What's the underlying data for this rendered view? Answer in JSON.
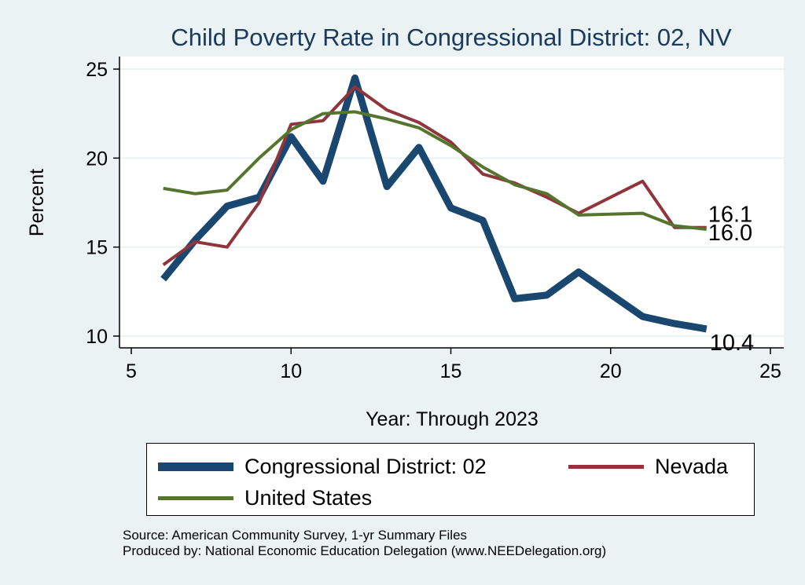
{
  "chart_data": {
    "type": "line",
    "title": "Child Poverty Rate in Congressional District:  02, NV",
    "xlabel": "Year: Through 2023",
    "ylabel": "Percent",
    "xlim": [
      5,
      25
    ],
    "ylim": [
      10,
      25
    ],
    "xticks": [
      5,
      10,
      15,
      20,
      25
    ],
    "yticks": [
      10,
      15,
      20,
      25
    ],
    "grid": true,
    "legend_position": "bottom",
    "series": [
      {
        "name": "Congressional District:  02",
        "color": "#1a476f",
        "x": [
          6,
          7,
          8,
          9,
          10,
          11,
          12,
          13,
          14,
          15,
          16,
          17,
          18,
          19,
          21,
          22,
          23
        ],
        "y": [
          13.2,
          15.4,
          17.3,
          17.8,
          21.2,
          18.7,
          24.5,
          18.4,
          20.6,
          17.2,
          16.5,
          12.1,
          12.3,
          13.6,
          11.1,
          10.7,
          10.4
        ],
        "end_label": "10.4"
      },
      {
        "name": "Nevada",
        "color": "#90353b",
        "x": [
          6,
          7,
          8,
          9,
          10,
          11,
          12,
          13,
          14,
          15,
          16,
          17,
          18,
          19,
          21,
          22,
          23
        ],
        "y": [
          14.0,
          15.3,
          15.0,
          17.5,
          21.9,
          22.1,
          24.0,
          22.7,
          22.0,
          20.9,
          19.1,
          18.6,
          17.8,
          16.9,
          18.7,
          16.1,
          16.1
        ],
        "end_label": "16.1"
      },
      {
        "name": "United States",
        "color": "#55752f",
        "x": [
          6,
          7,
          8,
          9,
          10,
          11,
          12,
          13,
          14,
          15,
          16,
          17,
          18,
          19,
          21,
          22,
          23
        ],
        "y": [
          18.3,
          18.0,
          18.2,
          20.0,
          21.6,
          22.5,
          22.6,
          22.2,
          21.7,
          20.7,
          19.5,
          18.5,
          18.0,
          16.8,
          16.9,
          16.2,
          16.0
        ],
        "end_label": "16.0"
      }
    ]
  },
  "source": {
    "line1": "Source: American Community Survey, 1-yr Summary Files",
    "line2": "Produced by: National Economic Education Delegation (www.NEEDelegation.org)"
  }
}
